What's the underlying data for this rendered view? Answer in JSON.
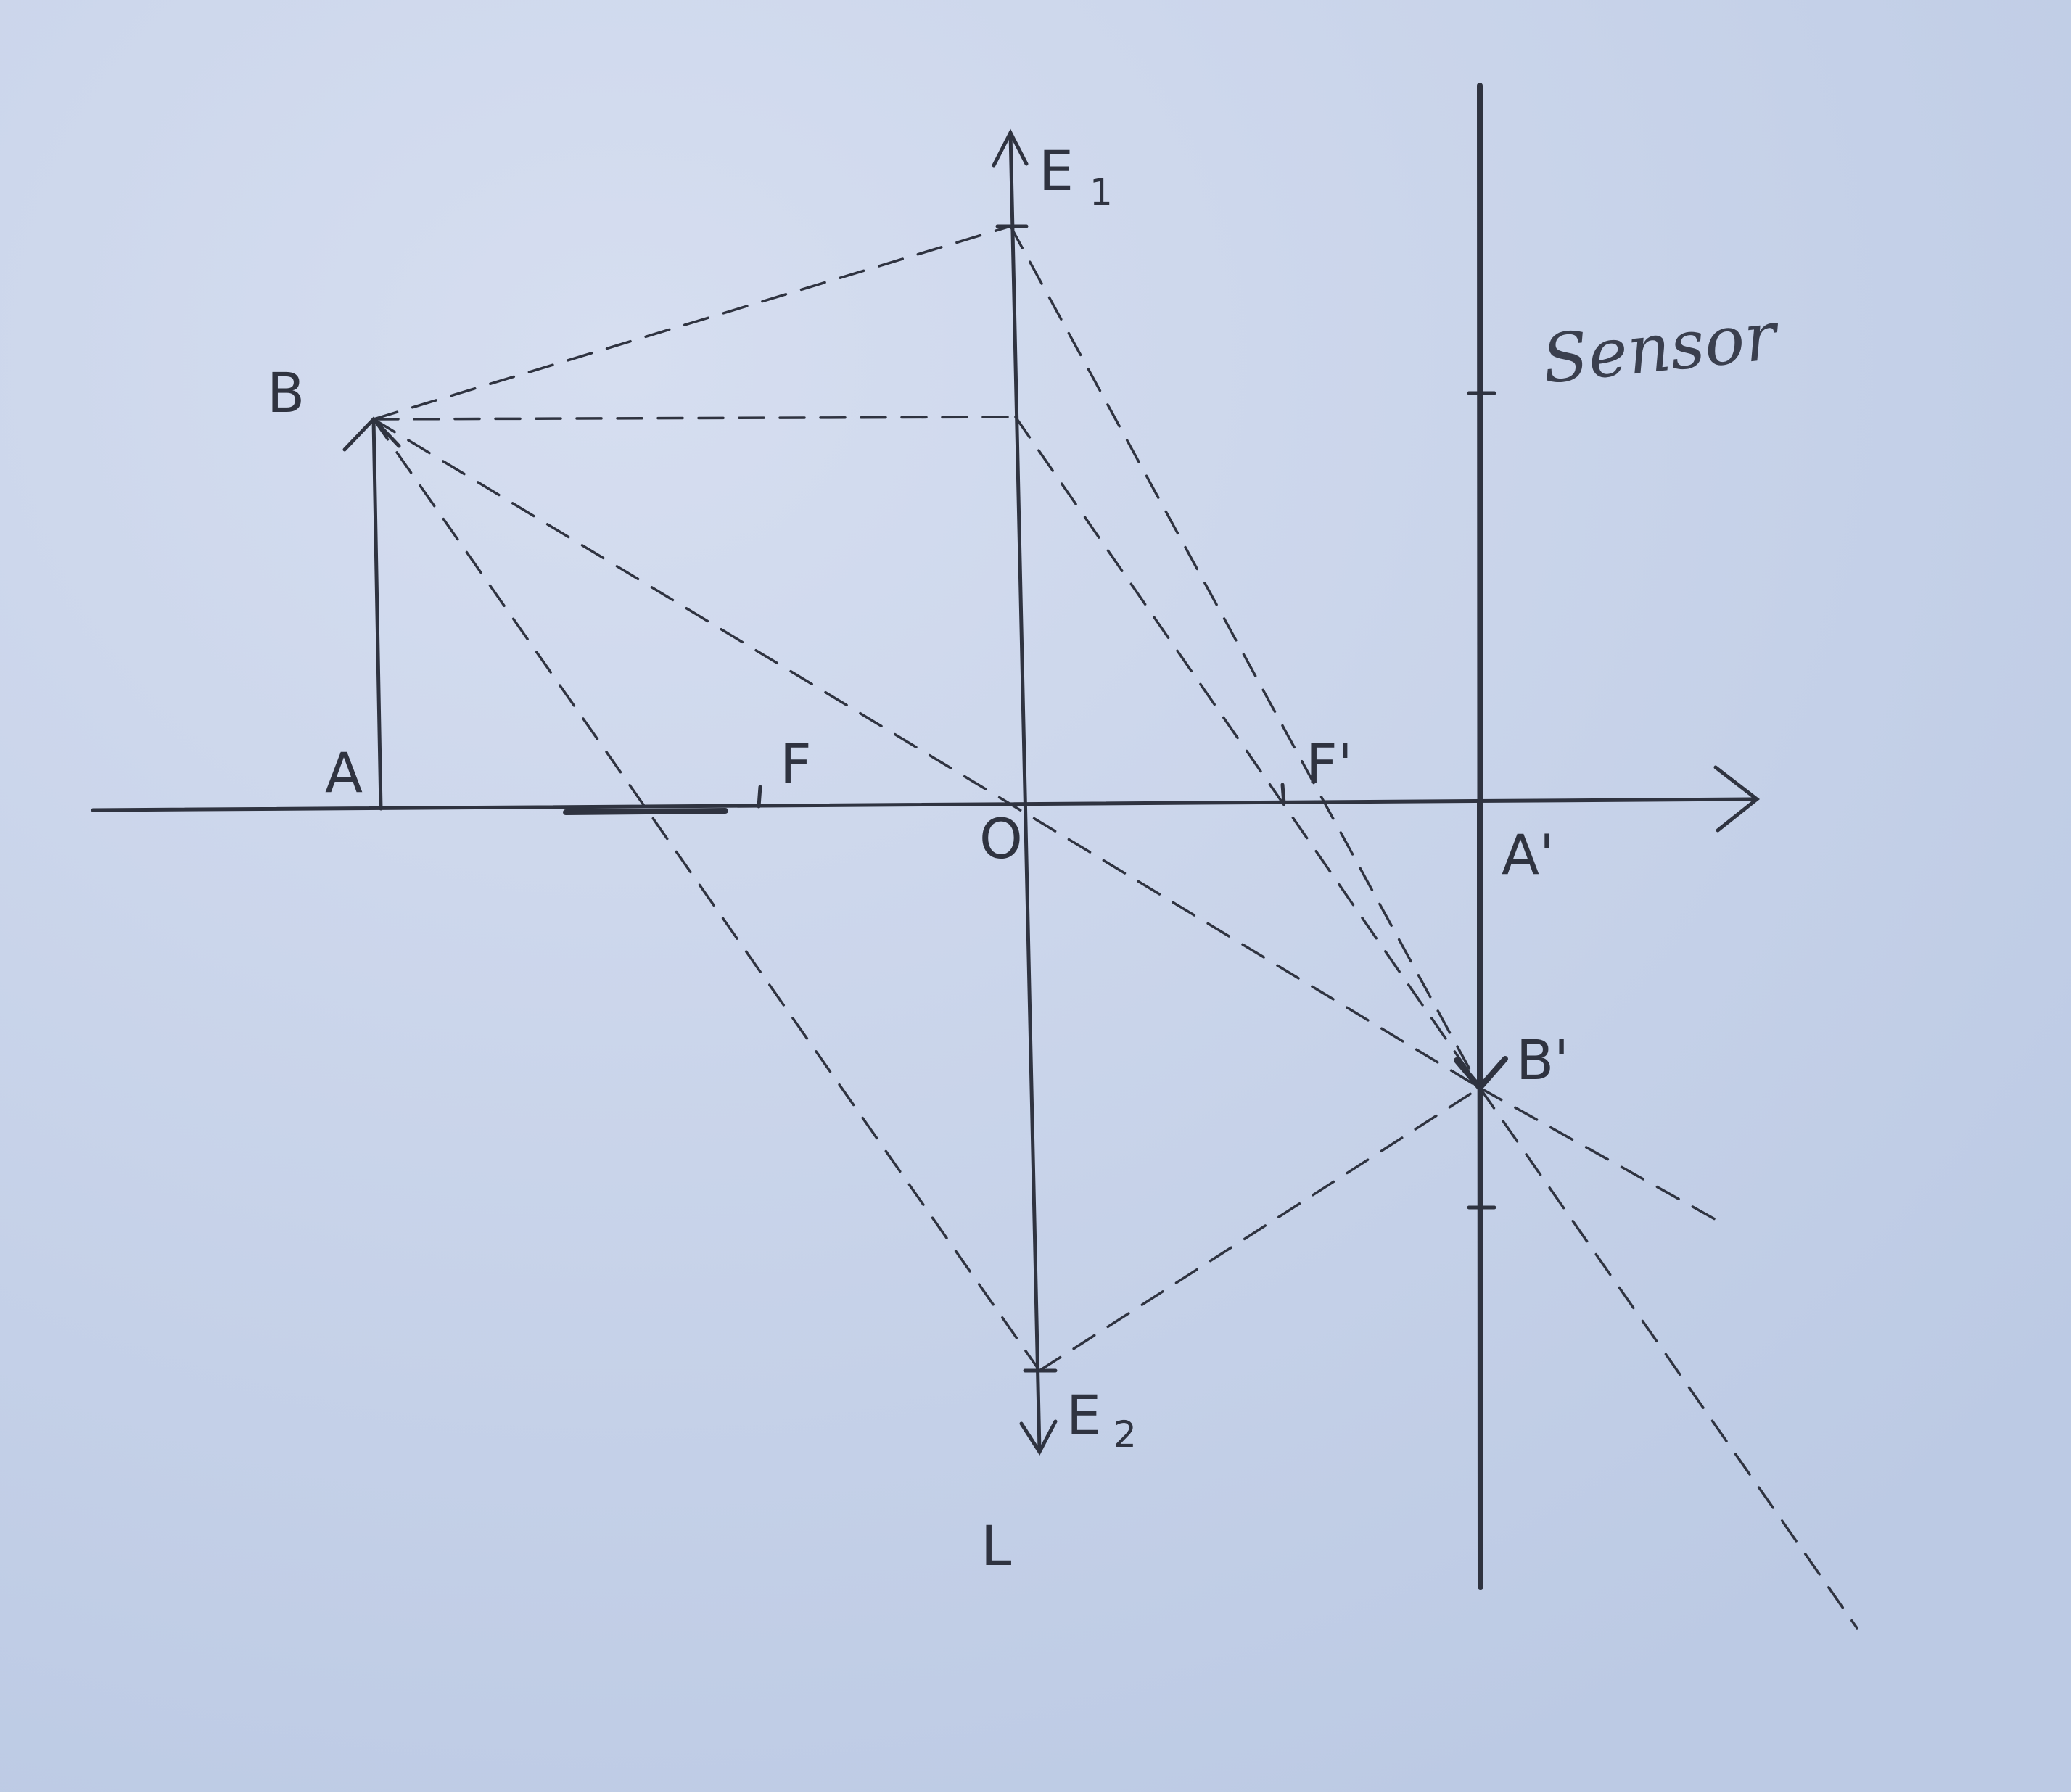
{
  "labels": {
    "B": "B",
    "A": "A",
    "F": "F",
    "O": "O",
    "F_prime": "F'",
    "A_prime": "A'",
    "B_prime": "B'",
    "E1": "E",
    "E1_sub": "1",
    "E2": "E",
    "E2_sub": "2",
    "L": "L",
    "sensor": "Sensor"
  },
  "colors": {
    "paper": "#c9d4ea",
    "ink": "#2f3340"
  }
}
